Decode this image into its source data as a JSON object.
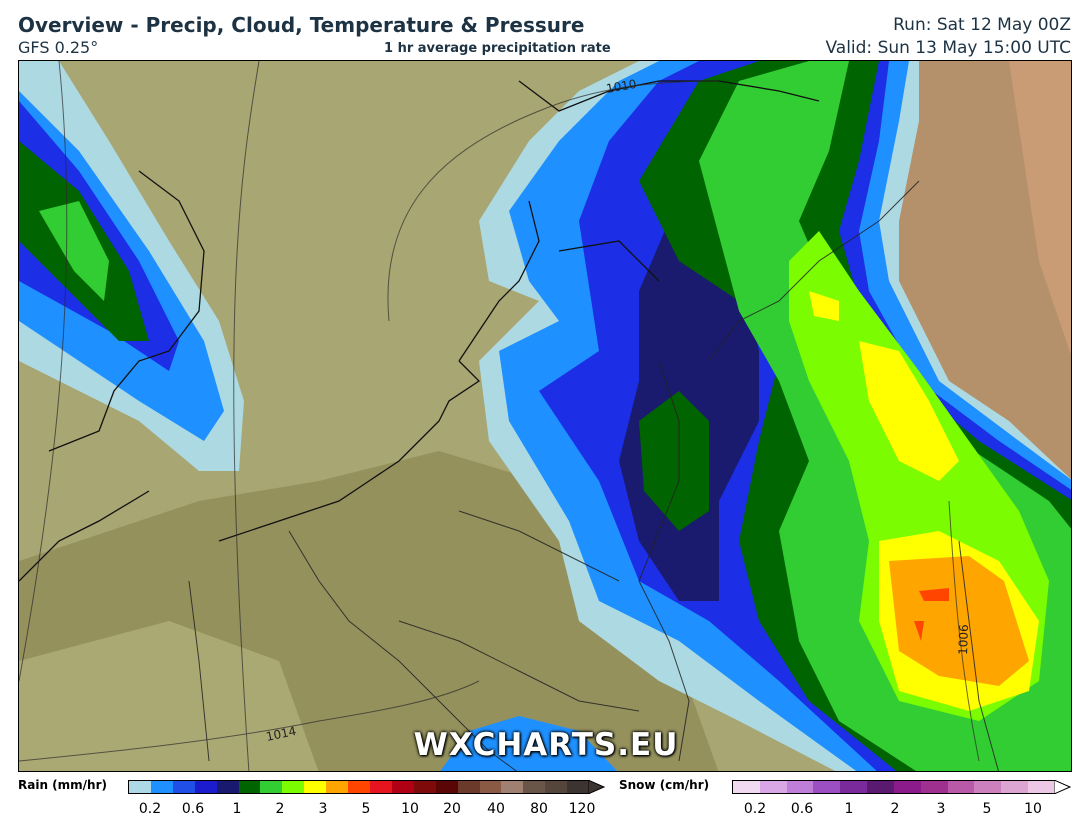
{
  "header": {
    "title": "Overview - Precip, Cloud, Temperature & Pressure",
    "model": "GFS 0.25°",
    "subtitle": "1 hr average precipitation rate",
    "run": "Run: Sat 12 May 00Z",
    "valid": "Valid: Sun 13 May 15:00 UTC"
  },
  "map": {
    "watermark": "WXCHARTS.EU",
    "isobars": [
      "1010",
      "1014",
      "1006"
    ],
    "colors": {
      "land": "#a8a672",
      "rain_light": "#add9e3",
      "rain_blue": "#1e90ff",
      "rain_medium": "#1c2ee6",
      "rain_navy": "#1a1a6e",
      "rain_darkgreen": "#006400",
      "rain_green": "#32cd32",
      "rain_lime": "#7cfc00",
      "rain_yellow": "#ffff00",
      "rain_orange": "#ffa500",
      "rain_red": "#ff4500"
    }
  },
  "legend": {
    "rain_label": "Rain (mm/hr)",
    "rain_ticks": [
      "0.2",
      "0.6",
      "1",
      "2",
      "3",
      "5",
      "10",
      "20",
      "40",
      "80",
      "120"
    ],
    "rain_colors": [
      "#add8e6",
      "#1e90ff",
      "#1f4fe6",
      "#1c1ccf",
      "#191970",
      "#006400",
      "#32cd32",
      "#7cfc00",
      "#ffff00",
      "#ffa500",
      "#ff4500",
      "#e6141e",
      "#b00014",
      "#7f0a0a",
      "#5a0606",
      "#6b3a2a",
      "#8b5a45",
      "#a08070",
      "#6a5648",
      "#55463c",
      "#3c3430"
    ],
    "snow_label": "Snow (cm/hr)",
    "snow_ticks": [
      "0.2",
      "0.6",
      "1",
      "2",
      "3",
      "5",
      "10"
    ],
    "snow_colors": [
      "#f2d9f2",
      "#d9a6e6",
      "#bf7fd9",
      "#9b4fc2",
      "#7a2a9a",
      "#5a1a70",
      "#8b1a8b",
      "#a03090",
      "#b85aa8",
      "#cc80bd",
      "#dda6d2",
      "#ecc8e6"
    ]
  }
}
